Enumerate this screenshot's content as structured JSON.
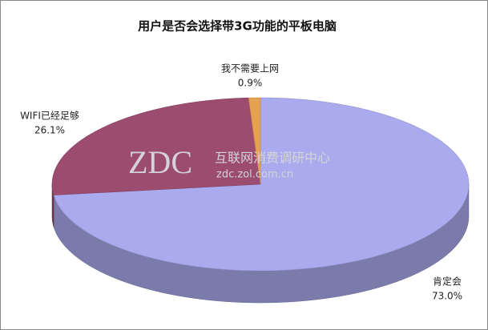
{
  "chart_data": {
    "type": "pie",
    "title": "用户是否会选择带3G功能的平板电脑",
    "categories": [
      "肯定会",
      "WIFI已经足够",
      "我不需要上网"
    ],
    "values": [
      73.0,
      26.1,
      0.9
    ],
    "value_labels": [
      "73.0%",
      "26.1%",
      "0.9%"
    ],
    "colors": [
      "#a9abee",
      "#9c4c6e",
      "#e6a253"
    ]
  },
  "watermark": {
    "logo": "ZDC",
    "text": "互联网消费调研中心",
    "url": "zdc.zol.com.cn"
  }
}
